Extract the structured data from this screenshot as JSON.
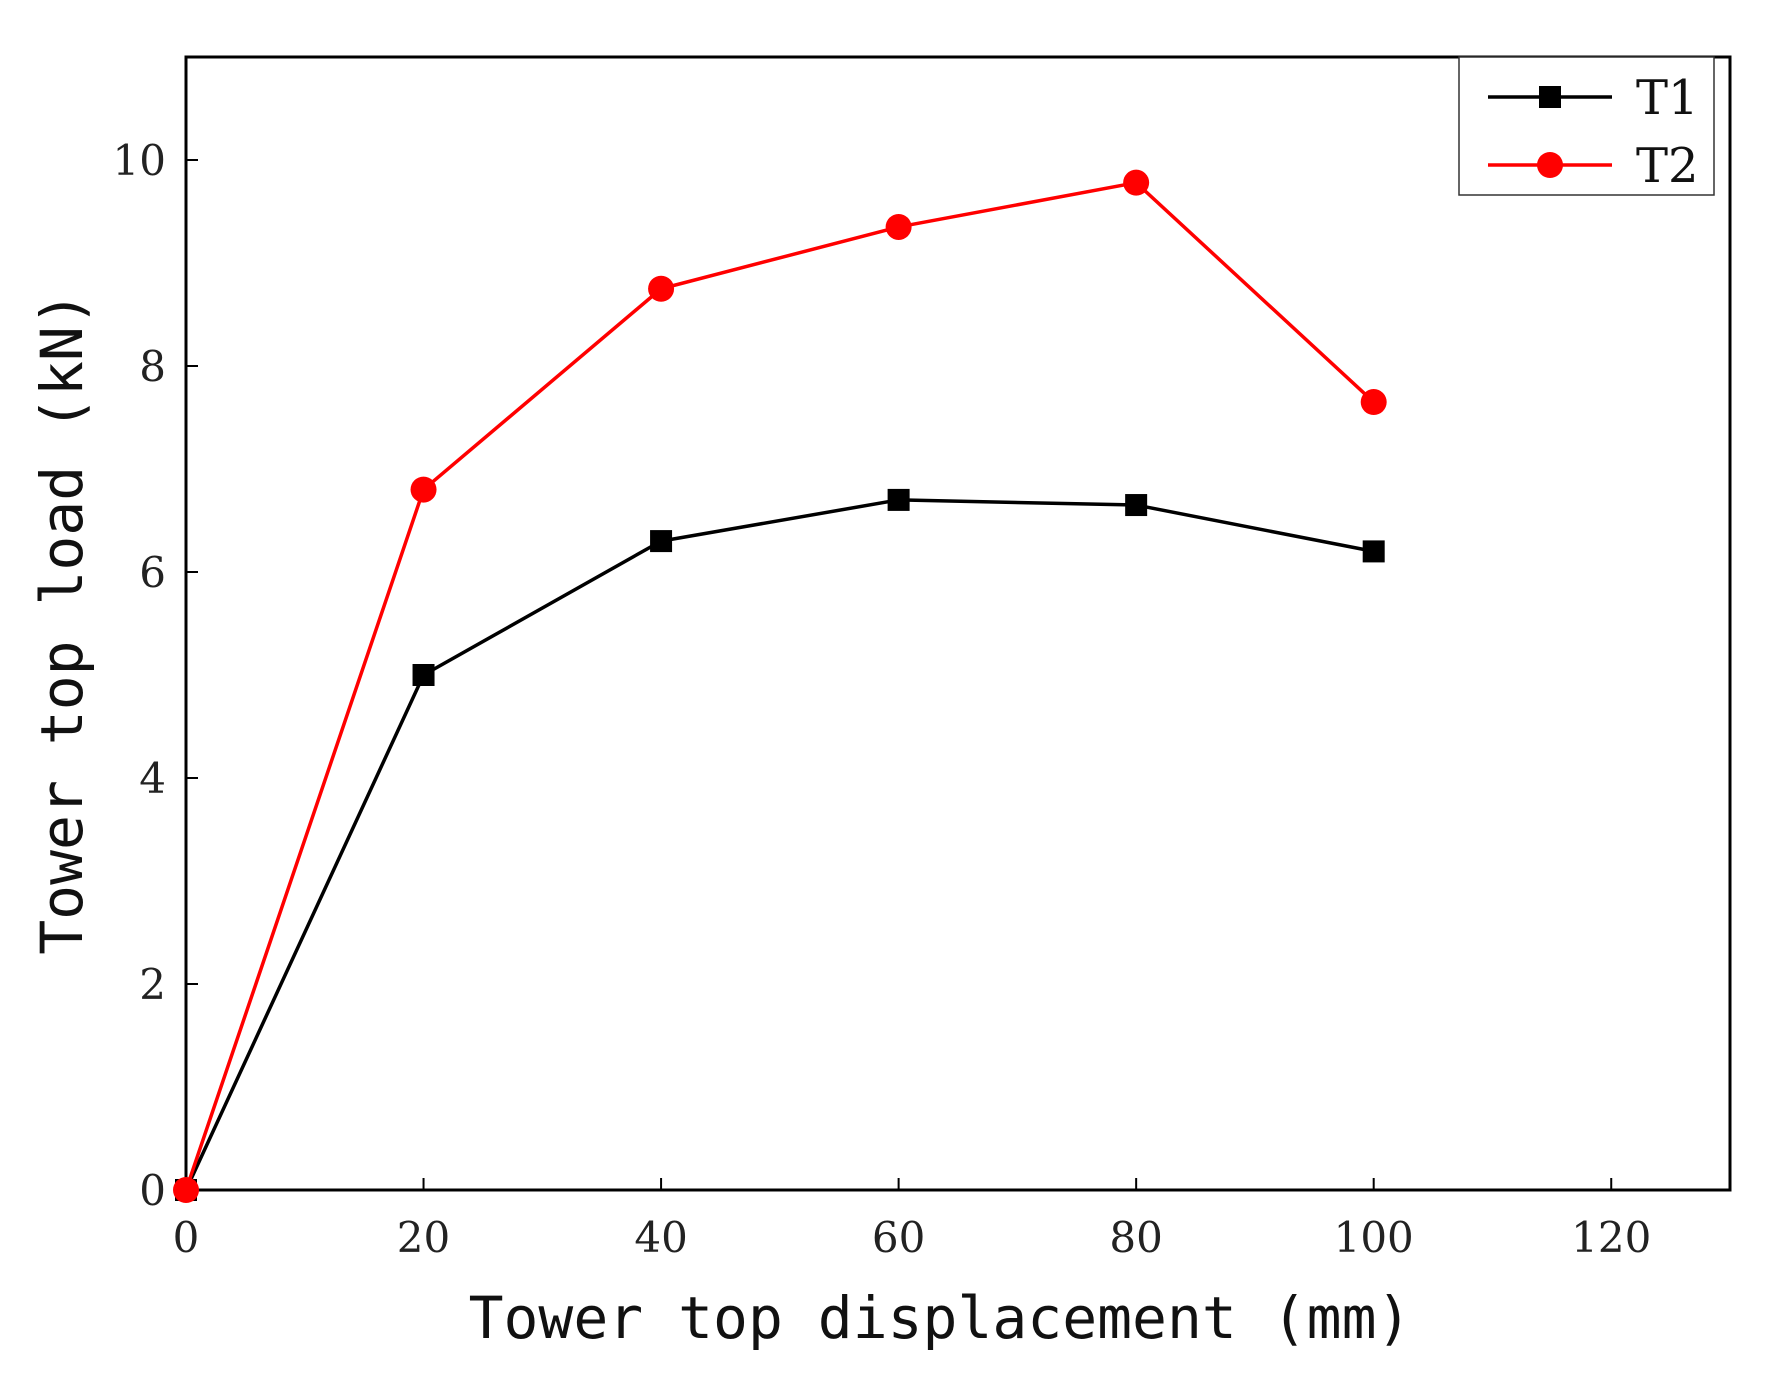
{
  "chart_data": {
    "type": "line",
    "title": "",
    "xlabel": "Tower top displacement (mm)",
    "ylabel": "Tower top load (kN)",
    "xlim": [
      0,
      130
    ],
    "ylim": [
      0,
      11
    ],
    "xticks": [
      0,
      20,
      40,
      60,
      80,
      100,
      120
    ],
    "yticks": [
      0,
      2,
      4,
      6,
      8,
      10
    ],
    "xtick_labels": [
      "0",
      "20",
      "40",
      "60",
      "80",
      "100",
      "120"
    ],
    "ytick_labels": [
      "0",
      "2",
      "4",
      "6",
      "8",
      "10"
    ],
    "legend_position": "top-right",
    "grid": false,
    "series": [
      {
        "name": "T1",
        "color": "#000000",
        "marker": "square",
        "x": [
          0,
          20,
          40,
          60,
          80,
          100
        ],
        "y": [
          0,
          5.0,
          6.3,
          6.7,
          6.65,
          6.2
        ]
      },
      {
        "name": "T2",
        "color": "#ff0000",
        "marker": "circle",
        "x": [
          0,
          20,
          40,
          60,
          80,
          100
        ],
        "y": [
          0,
          6.8,
          8.75,
          9.35,
          9.78,
          7.65
        ]
      }
    ]
  }
}
